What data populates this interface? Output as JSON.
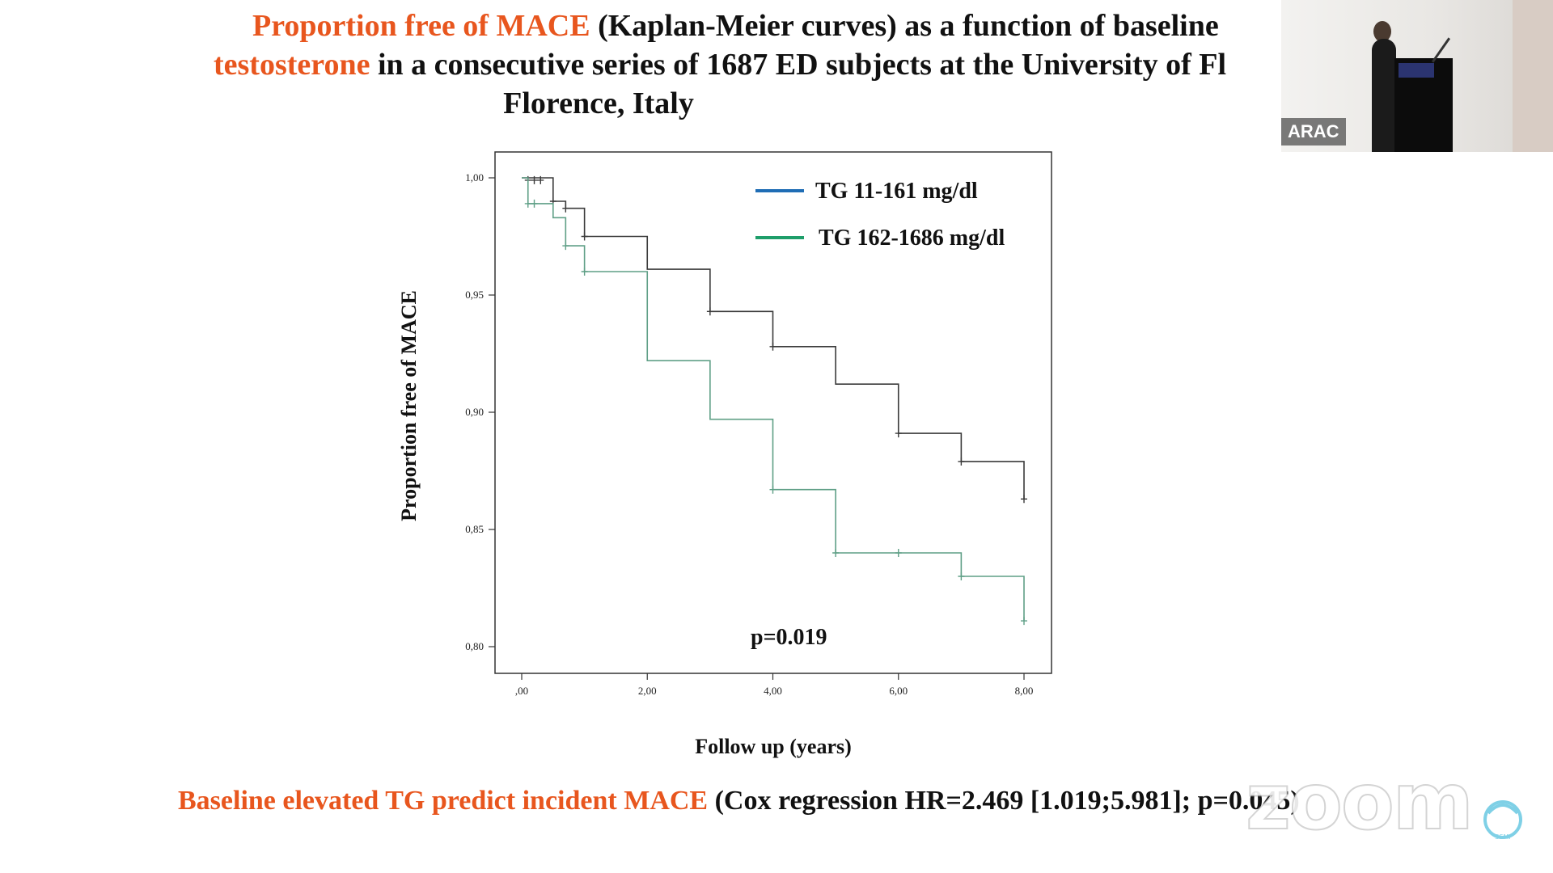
{
  "slide": {
    "title_line1_highlight": "Proportion free of MACE",
    "title_line1_rest": " (Kaplan-Meier curves) as a function of baseline",
    "title_line2_highlight": "testosterone",
    "title_line2_rest": " in a consecutive series of 1687 ED subjects at the University of Fl",
    "title_line3": "Florence, Italy",
    "footer_highlight": "Baseline elevated TG predict incident MACE",
    "footer_rest": " (Cox regression HR=2.469 [1.019;5.981]; p=0.045)",
    "highlight_color": "#e8561e"
  },
  "chart_data": {
    "type": "line",
    "subtype": "kaplan-meier-step",
    "xlabel": "Follow up (years)",
    "ylabel": "Proportion free of MACE",
    "xlim": [
      0,
      8
    ],
    "ylim": [
      0.8,
      1.0
    ],
    "x_ticks": [
      0,
      2,
      4,
      6,
      8
    ],
    "x_tick_labels": [
      ",00",
      "2,00",
      "4,00",
      "6,00",
      "8,00"
    ],
    "y_ticks": [
      0.8,
      0.85,
      0.9,
      0.95,
      1.0
    ],
    "y_tick_labels": [
      "0,80",
      "0,85",
      "0,90",
      "0,95",
      "1,00"
    ],
    "annotation": "p=0.019",
    "legend_position": "top-right",
    "series": [
      {
        "name": "TG 11-161 mg/dl",
        "color": "#1f6db5",
        "curve_color": "#3a3a3a",
        "steps": [
          [
            0,
            1.0
          ],
          [
            0.5,
            0.99
          ],
          [
            0.7,
            0.987
          ],
          [
            1.0,
            0.975
          ],
          [
            2.0,
            0.961
          ],
          [
            3.0,
            0.943
          ],
          [
            4.0,
            0.928
          ],
          [
            5.0,
            0.912
          ],
          [
            6.0,
            0.891
          ],
          [
            7.0,
            0.879
          ],
          [
            8.0,
            0.863
          ]
        ],
        "censored": [
          [
            0.1,
            0.999
          ],
          [
            0.2,
            0.999
          ],
          [
            0.3,
            0.999
          ],
          [
            0.5,
            0.99
          ],
          [
            0.7,
            0.987
          ],
          [
            1.0,
            0.975
          ],
          [
            3.0,
            0.943
          ],
          [
            4.0,
            0.928
          ],
          [
            6.0,
            0.891
          ],
          [
            7.0,
            0.879
          ],
          [
            8.0,
            0.863
          ]
        ]
      },
      {
        "name": "TG 162-1686 mg/dl",
        "color": "#1e9e6a",
        "curve_color": "#5f9f86",
        "steps": [
          [
            0,
            1.0
          ],
          [
            0.1,
            0.989
          ],
          [
            0.5,
            0.983
          ],
          [
            0.7,
            0.971
          ],
          [
            1.0,
            0.96
          ],
          [
            2.0,
            0.922
          ],
          [
            3.0,
            0.897
          ],
          [
            4.0,
            0.867
          ],
          [
            5.0,
            0.84
          ],
          [
            6.0,
            0.84
          ],
          [
            7.0,
            0.83
          ],
          [
            8.0,
            0.811
          ]
        ],
        "censored": [
          [
            0.1,
            0.989
          ],
          [
            0.2,
            0.989
          ],
          [
            0.7,
            0.971
          ],
          [
            1.0,
            0.96
          ],
          [
            4.0,
            0.867
          ],
          [
            5.0,
            0.84
          ],
          [
            6.0,
            0.84
          ],
          [
            7.0,
            0.83
          ],
          [
            8.0,
            0.811
          ]
        ]
      }
    ]
  },
  "overlay": {
    "camera_name_tag": "ARAC",
    "watermark": "zoom"
  }
}
